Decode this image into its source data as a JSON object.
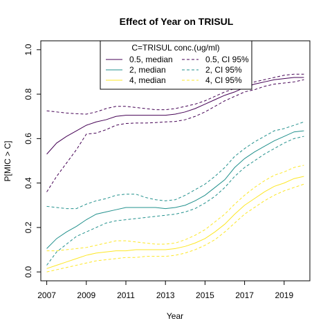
{
  "chart_data": {
    "type": "line",
    "title": "Effect of Year on TRISUL",
    "xlabel": "Year",
    "ylabel": "P[MIC > C]",
    "xlim": [
      2006.7,
      2020.3
    ],
    "ylim": [
      -0.04,
      1.04
    ],
    "x_ticks": [
      2007,
      2009,
      2011,
      2013,
      2015,
      2017,
      2019
    ],
    "y_ticks": [
      0.0,
      0.2,
      0.4,
      0.6,
      0.8,
      1.0
    ],
    "x_tick_labels": [
      "2007",
      "2009",
      "2011",
      "2013",
      "2015",
      "2017",
      "2019"
    ],
    "y_tick_labels": [
      "0.0",
      "0.2",
      "0.4",
      "0.6",
      "0.8",
      "1.0"
    ],
    "grid": false,
    "legend": {
      "title": "C=TRISUL conc.(ug/ml)",
      "placement": "top-center",
      "columns": 2,
      "entries": [
        "0.5, median",
        "2, median",
        "4, median",
        "0.5, CI 95%",
        "2, CI 95%",
        "4, CI 95%"
      ]
    },
    "x": [
      2007,
      2007.5,
      2008,
      2008.5,
      2009,
      2009.5,
      2010,
      2010.5,
      2011,
      2011.5,
      2012,
      2012.5,
      2013,
      2013.5,
      2014,
      2014.5,
      2015,
      2015.5,
      2016,
      2016.5,
      2017,
      2017.5,
      2018,
      2018.5,
      2019,
      2019.5,
      2020
    ],
    "series": [
      {
        "name": "0.5, median",
        "group": "0.5",
        "kind": "median",
        "color": "#440154",
        "values": [
          0.53,
          0.58,
          0.61,
          0.635,
          0.66,
          0.675,
          0.685,
          0.7,
          0.705,
          0.705,
          0.705,
          0.705,
          0.705,
          0.71,
          0.72,
          0.735,
          0.755,
          0.775,
          0.795,
          0.81,
          0.83,
          0.845,
          0.855,
          0.865,
          0.87,
          0.875,
          0.875
        ]
      },
      {
        "name": "0.5, CI 95%",
        "group": "0.5",
        "kind": "upper",
        "color": "#440154",
        "values": [
          0.725,
          0.72,
          0.715,
          0.712,
          0.71,
          0.72,
          0.735,
          0.745,
          0.745,
          0.74,
          0.735,
          0.73,
          0.73,
          0.735,
          0.745,
          0.755,
          0.77,
          0.79,
          0.81,
          0.825,
          0.84,
          0.855,
          0.865,
          0.875,
          0.885,
          0.89,
          0.89
        ]
      },
      {
        "group": "0.5",
        "kind": "lower",
        "color": "#440154",
        "values": [
          0.36,
          0.43,
          0.49,
          0.55,
          0.62,
          0.625,
          0.64,
          0.66,
          0.668,
          0.67,
          0.67,
          0.672,
          0.675,
          0.677,
          0.685,
          0.7,
          0.72,
          0.745,
          0.77,
          0.79,
          0.81,
          0.82,
          0.835,
          0.845,
          0.85,
          0.855,
          0.865
        ]
      },
      {
        "name": "2, median",
        "group": "2",
        "kind": "median",
        "color": "#21908C",
        "values": [
          0.105,
          0.15,
          0.18,
          0.205,
          0.235,
          0.26,
          0.27,
          0.28,
          0.29,
          0.29,
          0.29,
          0.29,
          0.285,
          0.29,
          0.3,
          0.32,
          0.345,
          0.38,
          0.415,
          0.47,
          0.51,
          0.54,
          0.565,
          0.59,
          0.61,
          0.63,
          0.635
        ]
      },
      {
        "name": "2, CI 95%",
        "group": "2",
        "kind": "upper",
        "color": "#21908C",
        "values": [
          0.295,
          0.29,
          0.285,
          0.285,
          0.305,
          0.32,
          0.33,
          0.345,
          0.35,
          0.35,
          0.335,
          0.325,
          0.32,
          0.325,
          0.345,
          0.37,
          0.395,
          0.43,
          0.47,
          0.52,
          0.555,
          0.585,
          0.61,
          0.635,
          0.645,
          0.66,
          0.675
        ]
      },
      {
        "group": "2",
        "kind": "lower",
        "color": "#21908C",
        "values": [
          0.03,
          0.09,
          0.125,
          0.16,
          0.18,
          0.2,
          0.22,
          0.23,
          0.235,
          0.24,
          0.245,
          0.25,
          0.255,
          0.26,
          0.27,
          0.285,
          0.31,
          0.34,
          0.38,
          0.43,
          0.47,
          0.5,
          0.53,
          0.555,
          0.58,
          0.6,
          0.61
        ]
      },
      {
        "name": "4, median",
        "group": "4",
        "kind": "median",
        "color": "#FDE725",
        "values": [
          0.015,
          0.03,
          0.045,
          0.06,
          0.075,
          0.085,
          0.09,
          0.095,
          0.095,
          0.1,
          0.1,
          0.1,
          0.1,
          0.105,
          0.115,
          0.13,
          0.15,
          0.18,
          0.215,
          0.26,
          0.3,
          0.33,
          0.36,
          0.385,
          0.4,
          0.42,
          0.43
        ]
      },
      {
        "name": "4, CI 95%",
        "group": "4",
        "kind": "upper",
        "color": "#FDE725",
        "values": [
          0.095,
          0.095,
          0.1,
          0.105,
          0.11,
          0.12,
          0.13,
          0.14,
          0.14,
          0.135,
          0.13,
          0.125,
          0.125,
          0.13,
          0.145,
          0.165,
          0.19,
          0.225,
          0.26,
          0.305,
          0.345,
          0.38,
          0.41,
          0.435,
          0.45,
          0.47,
          0.48
        ]
      },
      {
        "group": "4",
        "kind": "lower",
        "color": "#FDE725",
        "values": [
          0.0,
          0.01,
          0.02,
          0.03,
          0.04,
          0.05,
          0.055,
          0.06,
          0.065,
          0.065,
          0.07,
          0.07,
          0.07,
          0.075,
          0.085,
          0.1,
          0.12,
          0.145,
          0.18,
          0.22,
          0.26,
          0.29,
          0.32,
          0.345,
          0.365,
          0.38,
          0.395
        ]
      }
    ]
  }
}
